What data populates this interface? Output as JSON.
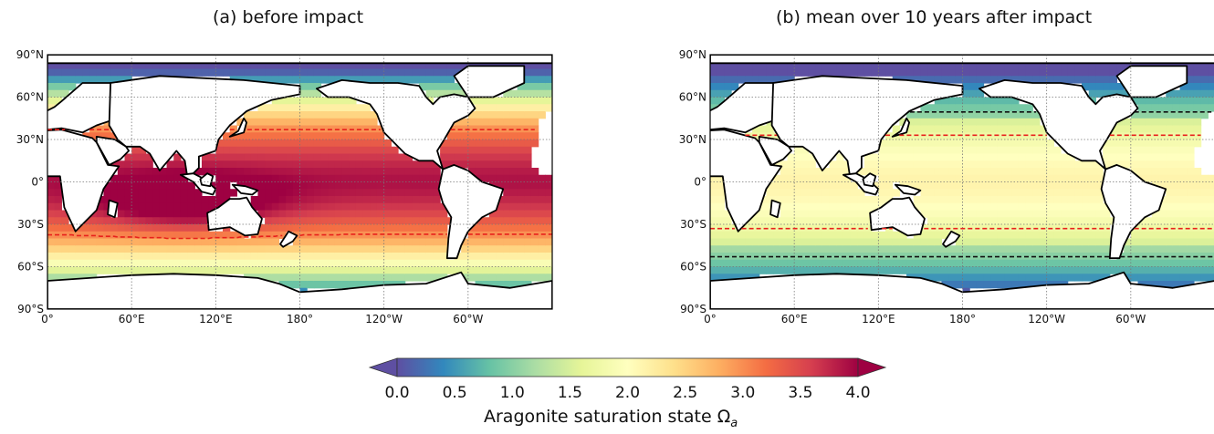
{
  "panels": [
    {
      "id": "a",
      "title": "(a) before impact"
    },
    {
      "id": "b",
      "title": "(b) mean over 10 years after impact"
    }
  ],
  "lat_ticks": [
    "90°N",
    "60°N",
    "30°N",
    "0°",
    "30°S",
    "60°S",
    "90°S"
  ],
  "lon_ticks": [
    "0°",
    "60°E",
    "120°E",
    "180°",
    "120°W",
    "60°W"
  ],
  "colorbar": {
    "label_main": "Aragonite saturation state Ω",
    "label_sub": "a",
    "ticks": [
      "0.0",
      "0.5",
      "1.0",
      "1.5",
      "2.0",
      "2.5",
      "3.0",
      "3.5",
      "4.0"
    ],
    "min": 0.0,
    "max": 4.0,
    "extend": "both",
    "colormap": "Spectral_r",
    "stops": [
      "#5e4fa2",
      "#3288bd",
      "#66c2a5",
      "#abdda4",
      "#e6f598",
      "#ffffbf",
      "#fee08b",
      "#fdae61",
      "#f46d43",
      "#d53e4f",
      "#9e0142"
    ]
  },
  "contours": [
    {
      "panel": "a",
      "level": 3.0,
      "color": "#e8211c",
      "style": "dashed"
    },
    {
      "panel": "b",
      "level": 1.0,
      "color": "#111111",
      "style": "dashed"
    },
    {
      "panel": "b",
      "level": 1.75,
      "color": "#e8211c",
      "style": "dashed"
    }
  ],
  "land_color": "#ffffff",
  "coastline_color": "#000000",
  "grid": true
}
